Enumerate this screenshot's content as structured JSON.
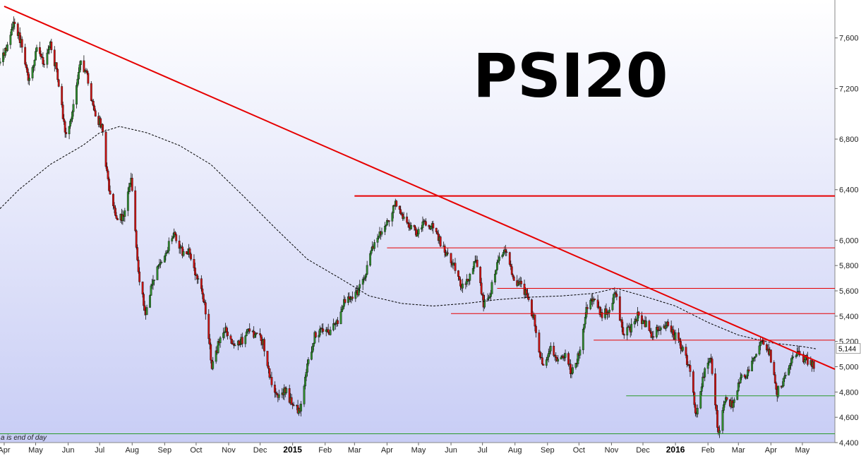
{
  "chart_data": {
    "type": "candlestick",
    "title": "PSI20",
    "footnote": "a is end of day",
    "last_price_label": "5,144",
    "last_price": 5144,
    "ylim": [
      4400,
      7900
    ],
    "xlim": [
      "2014-03-28",
      "2016-06-01"
    ],
    "y_ticks": [
      4400,
      4600,
      4800,
      5000,
      5200,
      5400,
      5600,
      5800,
      6000,
      6400,
      6800,
      7200,
      7600
    ],
    "y_tick_labels": [
      "4,400",
      "4,600",
      "4,800",
      "5,000",
      "5,200",
      "5,400",
      "5,600",
      "5,800",
      "6,000",
      "6,400",
      "6,800",
      "7,200",
      "7,600"
    ],
    "x_ticks": [
      {
        "date": "2014-04-01",
        "label": "Apr",
        "bold": false
      },
      {
        "date": "2014-05-01",
        "label": "May",
        "bold": false
      },
      {
        "date": "2014-06-01",
        "label": "Jun",
        "bold": false
      },
      {
        "date": "2014-07-01",
        "label": "Jul",
        "bold": false
      },
      {
        "date": "2014-08-01",
        "label": "Aug",
        "bold": false
      },
      {
        "date": "2014-09-01",
        "label": "Sep",
        "bold": false
      },
      {
        "date": "2014-10-01",
        "label": "Oct",
        "bold": false
      },
      {
        "date": "2014-11-01",
        "label": "Nov",
        "bold": false
      },
      {
        "date": "2014-12-01",
        "label": "Dec",
        "bold": false
      },
      {
        "date": "2015-01-01",
        "label": "2015",
        "bold": true
      },
      {
        "date": "2015-02-01",
        "label": "Feb",
        "bold": false
      },
      {
        "date": "2015-03-01",
        "label": "Mar",
        "bold": false
      },
      {
        "date": "2015-04-01",
        "label": "Apr",
        "bold": false
      },
      {
        "date": "2015-05-01",
        "label": "May",
        "bold": false
      },
      {
        "date": "2015-06-01",
        "label": "Jun",
        "bold": false
      },
      {
        "date": "2015-07-01",
        "label": "Jul",
        "bold": false
      },
      {
        "date": "2015-08-01",
        "label": "Aug",
        "bold": false
      },
      {
        "date": "2015-09-01",
        "label": "Sep",
        "bold": false
      },
      {
        "date": "2015-10-01",
        "label": "Oct",
        "bold": false
      },
      {
        "date": "2015-11-01",
        "label": "Nov",
        "bold": false
      },
      {
        "date": "2015-12-01",
        "label": "Dec",
        "bold": false
      },
      {
        "date": "2016-01-01",
        "label": "2016",
        "bold": true
      },
      {
        "date": "2016-02-01",
        "label": "Feb",
        "bold": false
      },
      {
        "date": "2016-03-01",
        "label": "Mar",
        "bold": false
      },
      {
        "date": "2016-04-01",
        "label": "Apr",
        "bold": false
      },
      {
        "date": "2016-05-01",
        "label": "May",
        "bold": false
      }
    ],
    "price_path": [
      [
        "2014-03-28",
        7400
      ],
      [
        "2014-04-04",
        7520
      ],
      [
        "2014-04-10",
        7750
      ],
      [
        "2014-04-17",
        7560
      ],
      [
        "2014-04-24",
        7250
      ],
      [
        "2014-05-02",
        7500
      ],
      [
        "2014-05-08",
        7400
      ],
      [
        "2014-05-15",
        7560
      ],
      [
        "2014-05-22",
        7300
      ],
      [
        "2014-05-29",
        6850
      ],
      [
        "2014-06-05",
        7000
      ],
      [
        "2014-06-12",
        7400
      ],
      [
        "2014-06-19",
        7300
      ],
      [
        "2014-06-26",
        7000
      ],
      [
        "2014-07-03",
        6900
      ],
      [
        "2014-07-10",
        6400
      ],
      [
        "2014-07-17",
        6150
      ],
      [
        "2014-07-24",
        6200
      ],
      [
        "2014-07-31",
        6500
      ],
      [
        "2014-08-07",
        5750
      ],
      [
        "2014-08-14",
        5400
      ],
      [
        "2014-08-21",
        5700
      ],
      [
        "2014-08-28",
        5800
      ],
      [
        "2014-09-04",
        5950
      ],
      [
        "2014-09-11",
        6050
      ],
      [
        "2014-09-18",
        5900
      ],
      [
        "2014-09-25",
        5900
      ],
      [
        "2014-10-02",
        5700
      ],
      [
        "2014-10-09",
        5500
      ],
      [
        "2014-10-16",
        5000
      ],
      [
        "2014-10-23",
        5200
      ],
      [
        "2014-10-30",
        5300
      ],
      [
        "2014-11-06",
        5150
      ],
      [
        "2014-11-13",
        5200
      ],
      [
        "2014-11-20",
        5300
      ],
      [
        "2014-11-27",
        5250
      ],
      [
        "2014-12-04",
        5200
      ],
      [
        "2014-12-11",
        4900
      ],
      [
        "2014-12-18",
        4750
      ],
      [
        "2014-12-25",
        4820
      ],
      [
        "2015-01-01",
        4700
      ],
      [
        "2015-01-08",
        4650
      ],
      [
        "2015-01-15",
        5000
      ],
      [
        "2015-01-22",
        5250
      ],
      [
        "2015-01-29",
        5300
      ],
      [
        "2015-02-05",
        5250
      ],
      [
        "2015-02-12",
        5350
      ],
      [
        "2015-02-19",
        5500
      ],
      [
        "2015-02-26",
        5550
      ],
      [
        "2015-03-05",
        5600
      ],
      [
        "2015-03-12",
        5750
      ],
      [
        "2015-03-19",
        5950
      ],
      [
        "2015-03-26",
        6050
      ],
      [
        "2015-04-02",
        6150
      ],
      [
        "2015-04-09",
        6300
      ],
      [
        "2015-04-16",
        6200
      ],
      [
        "2015-04-23",
        6100
      ],
      [
        "2015-04-30",
        6050
      ],
      [
        "2015-05-07",
        6150
      ],
      [
        "2015-05-14",
        6100
      ],
      [
        "2015-05-21",
        6000
      ],
      [
        "2015-05-28",
        5900
      ],
      [
        "2015-06-04",
        5800
      ],
      [
        "2015-06-11",
        5650
      ],
      [
        "2015-06-18",
        5700
      ],
      [
        "2015-06-25",
        5850
      ],
      [
        "2015-07-02",
        5500
      ],
      [
        "2015-07-09",
        5600
      ],
      [
        "2015-07-16",
        5850
      ],
      [
        "2015-07-23",
        5900
      ],
      [
        "2015-07-30",
        5700
      ],
      [
        "2015-08-06",
        5650
      ],
      [
        "2015-08-13",
        5550
      ],
      [
        "2015-08-20",
        5350
      ],
      [
        "2015-08-27",
        5000
      ],
      [
        "2015-09-03",
        5150
      ],
      [
        "2015-09-10",
        5050
      ],
      [
        "2015-09-17",
        5100
      ],
      [
        "2015-09-24",
        4950
      ],
      [
        "2015-10-01",
        5100
      ],
      [
        "2015-10-08",
        5450
      ],
      [
        "2015-10-15",
        5550
      ],
      [
        "2015-10-22",
        5400
      ],
      [
        "2015-10-29",
        5450
      ],
      [
        "2015-11-05",
        5600
      ],
      [
        "2015-11-12",
        5250
      ],
      [
        "2015-11-19",
        5300
      ],
      [
        "2015-11-26",
        5400
      ],
      [
        "2015-12-03",
        5350
      ],
      [
        "2015-12-10",
        5250
      ],
      [
        "2015-12-17",
        5300
      ],
      [
        "2015-12-24",
        5350
      ],
      [
        "2015-12-31",
        5250
      ],
      [
        "2016-01-07",
        5150
      ],
      [
        "2016-01-14",
        5000
      ],
      [
        "2016-01-21",
        4600
      ],
      [
        "2016-01-28",
        4950
      ],
      [
        "2016-02-04",
        5050
      ],
      [
        "2016-02-11",
        4470
      ],
      [
        "2016-02-18",
        4750
      ],
      [
        "2016-02-25",
        4700
      ],
      [
        "2016-03-03",
        4900
      ],
      [
        "2016-03-10",
        4950
      ],
      [
        "2016-03-17",
        5100
      ],
      [
        "2016-03-24",
        5200
      ],
      [
        "2016-03-31",
        5100
      ],
      [
        "2016-04-07",
        4800
      ],
      [
        "2016-04-14",
        4900
      ],
      [
        "2016-04-21",
        5050
      ],
      [
        "2016-04-28",
        5100
      ],
      [
        "2016-05-05",
        5050
      ],
      [
        "2016-05-12",
        5020
      ]
    ],
    "moving_average": [
      [
        "2014-03-28",
        6250
      ],
      [
        "2014-04-15",
        6400
      ],
      [
        "2014-05-15",
        6600
      ],
      [
        "2014-06-15",
        6750
      ],
      [
        "2014-07-01",
        6850
      ],
      [
        "2014-07-20",
        6900
      ],
      [
        "2014-08-15",
        6850
      ],
      [
        "2014-09-15",
        6750
      ],
      [
        "2014-10-15",
        6600
      ],
      [
        "2014-11-15",
        6350
      ],
      [
        "2014-12-15",
        6100
      ],
      [
        "2015-01-15",
        5850
      ],
      [
        "2015-02-15",
        5700
      ],
      [
        "2015-03-15",
        5560
      ],
      [
        "2015-04-15",
        5500
      ],
      [
        "2015-05-15",
        5480
      ],
      [
        "2015-06-15",
        5500
      ],
      [
        "2015-07-15",
        5530
      ],
      [
        "2015-08-15",
        5550
      ],
      [
        "2015-09-15",
        5560
      ],
      [
        "2015-10-15",
        5580
      ],
      [
        "2015-11-05",
        5620
      ],
      [
        "2015-12-01",
        5560
      ],
      [
        "2016-01-01",
        5480
      ],
      [
        "2016-02-01",
        5350
      ],
      [
        "2016-03-01",
        5250
      ],
      [
        "2016-04-01",
        5190
      ],
      [
        "2016-05-01",
        5160
      ],
      [
        "2016-05-15",
        5140
      ]
    ],
    "trendline": {
      "start": [
        "2014-04-01",
        7850
      ],
      "end": [
        "2016-06-01",
        4980
      ],
      "color": "#e60000"
    },
    "resistance_lines": [
      {
        "value": 6350,
        "from": "2015-03-01",
        "to": "2016-06-01"
      },
      {
        "value": 5940,
        "from": "2015-04-01",
        "to": "2016-06-01"
      },
      {
        "value": 5620,
        "from": "2015-07-15",
        "to": "2016-06-01"
      },
      {
        "value": 5420,
        "from": "2015-06-01",
        "to": "2016-06-01"
      },
      {
        "value": 5210,
        "from": "2015-10-15",
        "to": "2016-06-01"
      }
    ],
    "support_lines": [
      {
        "value": 4770,
        "from": "2015-11-15",
        "to": "2016-06-01"
      },
      {
        "value": 4470,
        "from": "2014-03-28",
        "to": "2016-06-01"
      }
    ],
    "colors": {
      "up_candle": "#2e8b2e",
      "down_candle": "#cc1111",
      "resistance": "#e60000",
      "support": "#2a9a2a",
      "moving_average": "#000000",
      "background_top": "#ffffff",
      "background_bottom": "#c8cdf5"
    }
  }
}
